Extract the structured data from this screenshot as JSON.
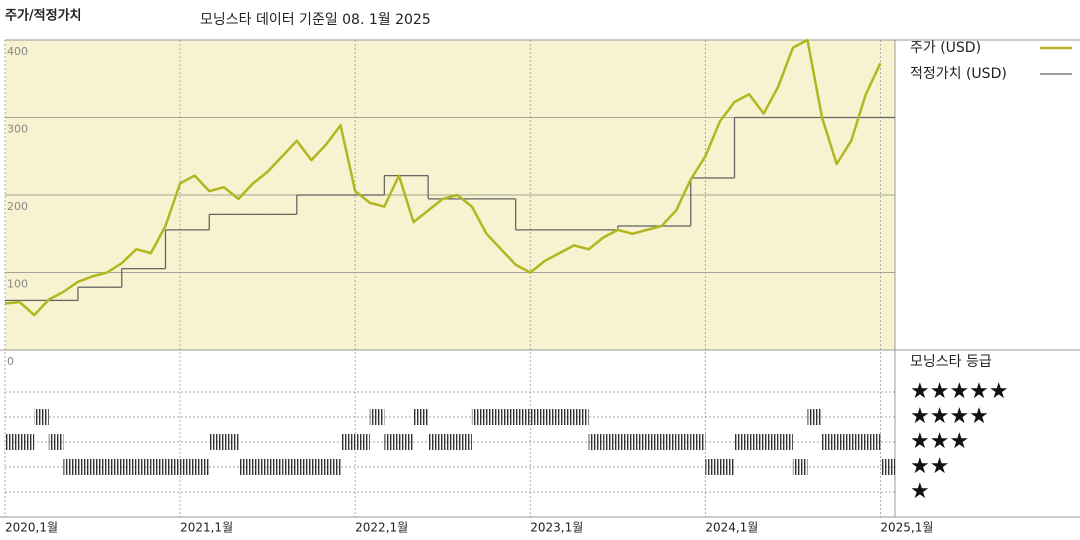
{
  "chart_data": {
    "type": "line",
    "panel_label": "주가/적정가치",
    "title": "모닝스타 데이터 기준일 08. 1월 2025",
    "x": [
      "2020-01",
      "2020-02",
      "2020-03",
      "2020-04",
      "2020-05",
      "2020-06",
      "2020-07",
      "2020-08",
      "2020-09",
      "2020-10",
      "2020-11",
      "2020-12",
      "2021-01",
      "2021-02",
      "2021-03",
      "2021-04",
      "2021-05",
      "2021-06",
      "2021-07",
      "2021-08",
      "2021-09",
      "2021-10",
      "2021-11",
      "2021-12",
      "2022-01",
      "2022-02",
      "2022-03",
      "2022-04",
      "2022-05",
      "2022-06",
      "2022-07",
      "2022-08",
      "2022-09",
      "2022-10",
      "2022-11",
      "2022-12",
      "2023-01",
      "2023-02",
      "2023-03",
      "2023-04",
      "2023-05",
      "2023-06",
      "2023-07",
      "2023-08",
      "2023-09",
      "2023-10",
      "2023-11",
      "2023-12",
      "2024-01",
      "2024-02",
      "2024-03",
      "2024-04",
      "2024-05",
      "2024-06",
      "2024-07",
      "2024-08",
      "2024-09",
      "2024-10",
      "2024-11",
      "2024-12",
      "2025-01"
    ],
    "series": [
      {
        "name": "주가 (USD)",
        "color": "#b3b620",
        "values": [
          60,
          62,
          45,
          65,
          75,
          88,
          95,
          100,
          112,
          130,
          125,
          160,
          215,
          225,
          205,
          210,
          195,
          215,
          230,
          250,
          270,
          245,
          265,
          290,
          205,
          190,
          185,
          225,
          165,
          180,
          195,
          200,
          185,
          150,
          130,
          110,
          100,
          115,
          125,
          135,
          130,
          145,
          155,
          150,
          155,
          160,
          180,
          220,
          250,
          295,
          320,
          330,
          305,
          340,
          390,
          400,
          300,
          240,
          270,
          330,
          370
        ]
      },
      {
        "name": "적정가치 (USD)",
        "color": "#666666",
        "step": true,
        "values": [
          64,
          64,
          64,
          64,
          64,
          81,
          81,
          81,
          105,
          105,
          105,
          155,
          155,
          155,
          175,
          175,
          175,
          175,
          175,
          175,
          200,
          200,
          200,
          200,
          200,
          200,
          225,
          225,
          225,
          195,
          195,
          195,
          195,
          195,
          195,
          155,
          155,
          155,
          155,
          155,
          155,
          155,
          160,
          160,
          160,
          160,
          160,
          222,
          222,
          222,
          300,
          300,
          300,
          300,
          300,
          300,
          300,
          300,
          300,
          300,
          300
        ]
      }
    ],
    "rating": {
      "title": "모닝스타 등급",
      "color": "#333333",
      "labels": [
        "★★★★★",
        "★★★★",
        "★★★",
        "★★",
        "★"
      ],
      "values": [
        3,
        3,
        4,
        3,
        2,
        2,
        2,
        2,
        2,
        2,
        2,
        2,
        2,
        2,
        3,
        3,
        2,
        2,
        2,
        2,
        2,
        2,
        2,
        3,
        3,
        4,
        3,
        3,
        4,
        3,
        3,
        3,
        4,
        4,
        4,
        4,
        4,
        4,
        4,
        4,
        3,
        3,
        3,
        3,
        3,
        3,
        3,
        3,
        2,
        2,
        3,
        3,
        3,
        3,
        2,
        4,
        3,
        3,
        3,
        3,
        2
      ]
    },
    "xlim": [
      "2020-01",
      "2025-02"
    ],
    "xticks": [
      {
        "value": "2020-01",
        "label": "2020,1월"
      },
      {
        "value": "2021-01",
        "label": "2021,1월"
      },
      {
        "value": "2022-01",
        "label": "2022,1월"
      },
      {
        "value": "2023-01",
        "label": "2023,1월"
      },
      {
        "value": "2024-01",
        "label": "2024,1월"
      },
      {
        "value": "2025-01",
        "label": "2025,1월"
      }
    ],
    "ylim": [
      0,
      400
    ],
    "yticks": [
      0,
      100,
      200,
      300,
      400
    ],
    "grid": true
  }
}
